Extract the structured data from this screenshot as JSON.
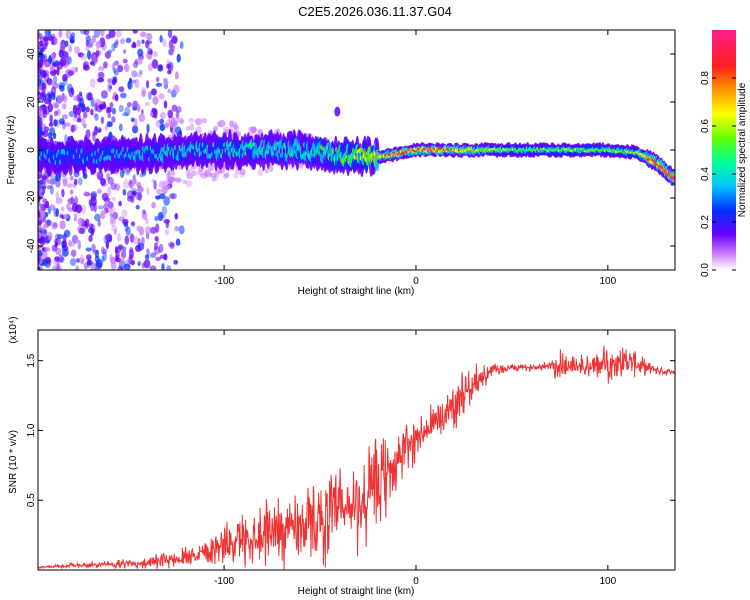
{
  "title": "C2E5.2026.036.11.37.G04",
  "chart_data": [
    {
      "type": "heatmap",
      "xlabel": "Height of straight line (km)",
      "ylabel": "Frequency (Hz)",
      "xlim": [
        -197,
        135
      ],
      "ylim": [
        -50,
        50
      ],
      "xticks": [
        -100,
        0,
        100
      ],
      "yticks": [
        -40,
        -20,
        0,
        20,
        40
      ],
      "colorbar": {
        "label": "Normalized spectral amplitude",
        "range": [
          0,
          1
        ],
        "ticks": [
          "0.0",
          "0.2",
          "0.4",
          "0.6",
          "0.8"
        ],
        "tick_values": [
          0,
          0.2,
          0.4,
          0.6,
          0.8
        ]
      },
      "ridge": {
        "x": [
          -197,
          -150,
          -100,
          -60,
          -40,
          -20,
          0,
          50,
          100,
          115,
          125,
          135
        ],
        "freq": [
          -3,
          -2,
          0,
          0,
          -2,
          -3,
          0,
          0,
          0,
          -1,
          -5,
          -12
        ],
        "amplitude": [
          0.3,
          0.35,
          0.4,
          0.45,
          0.5,
          0.7,
          0.9,
          0.55,
          0.55,
          0.6,
          0.95,
          0.9
        ]
      },
      "colors": [
        "#ff1e8c",
        "#ff1e1e",
        "#ff9600",
        "#ffff00",
        "#64ff00",
        "#00ff96",
        "#00c8ff",
        "#0032ff",
        "#6400ff",
        "#c878ff",
        "#ffffff"
      ]
    },
    {
      "type": "line",
      "xlabel": "Height of straight line (km)",
      "ylabel": "SNR (10 * v/v)",
      "yscale_label": "(x10⁴)",
      "xlim": [
        -197,
        135
      ],
      "ylim": [
        0,
        1.72
      ],
      "xticks": [
        -100,
        0,
        100
      ],
      "yticks": [
        "0.5",
        "1.0",
        "1.5"
      ],
      "ytick_values": [
        0.5,
        1.0,
        1.5
      ],
      "series": [
        {
          "color": "#ee3333",
          "x": [
            -197,
            -180,
            -160,
            -140,
            -125,
            -110,
            -95,
            -80,
            -70,
            -60,
            -50,
            -40,
            -30,
            -25,
            -20,
            -15,
            -10,
            -5,
            0,
            5,
            10,
            15,
            20,
            25,
            30,
            40,
            50,
            60,
            70,
            75,
            80,
            90,
            100,
            110,
            120,
            130,
            135
          ],
          "values": [
            0.02,
            0.03,
            0.04,
            0.05,
            0.08,
            0.14,
            0.2,
            0.27,
            0.3,
            0.33,
            0.35,
            0.4,
            0.45,
            0.52,
            0.6,
            0.68,
            0.78,
            0.87,
            0.95,
            1.0,
            1.05,
            1.12,
            1.2,
            1.27,
            1.34,
            1.43,
            1.45,
            1.45,
            1.47,
            1.47,
            1.47,
            1.45,
            1.48,
            1.5,
            1.45,
            1.42,
            1.42
          ],
          "noise": [
            0.01,
            0.02,
            0.03,
            0.05,
            0.08,
            0.12,
            0.2,
            0.28,
            0.32,
            0.32,
            0.35,
            0.42,
            0.42,
            0.5,
            0.45,
            0.35,
            0.3,
            0.25,
            0.2,
            0.2,
            0.2,
            0.22,
            0.22,
            0.2,
            0.15,
            0.06,
            0.03,
            0.03,
            0.04,
            0.2,
            0.1,
            0.12,
            0.15,
            0.15,
            0.06,
            0.03,
            0.03
          ]
        }
      ]
    }
  ]
}
